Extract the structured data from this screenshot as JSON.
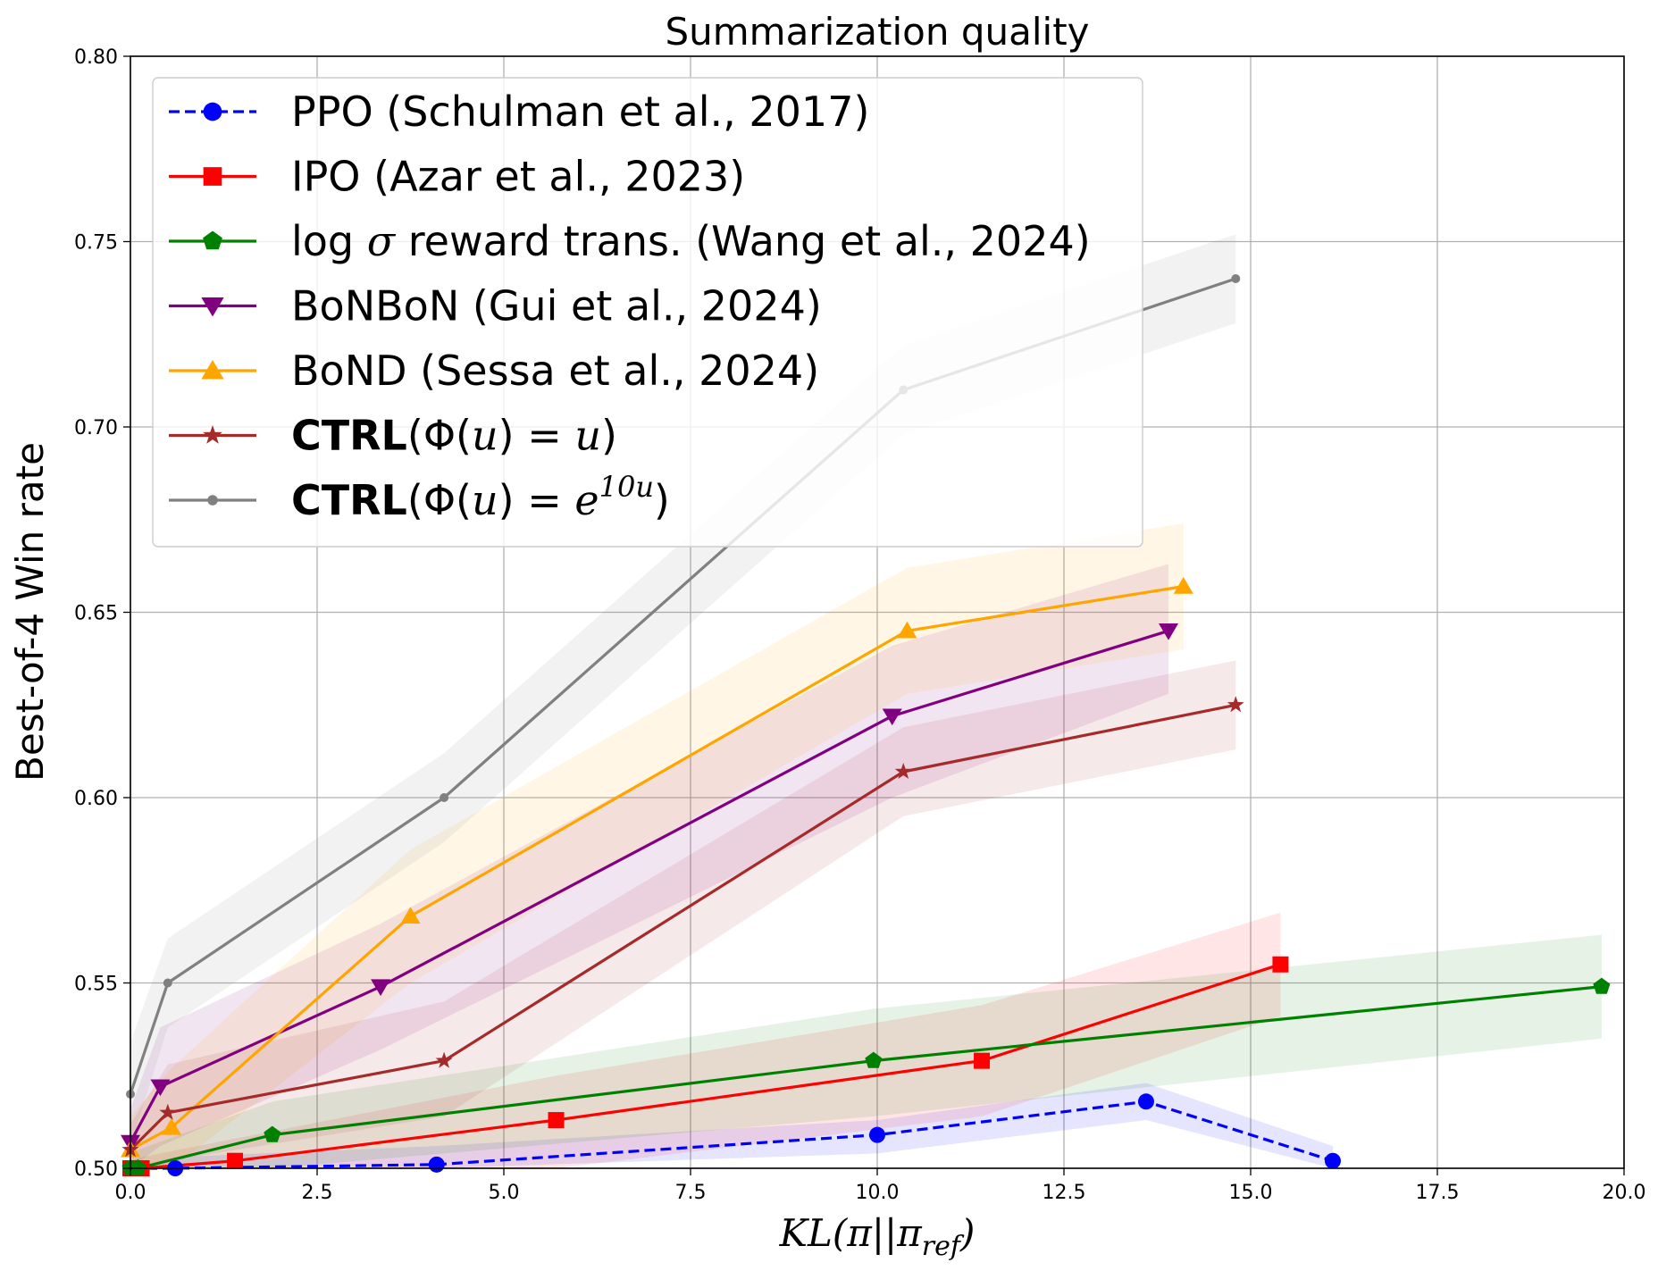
{
  "chart_data": {
    "type": "line",
    "title": "Summarization quality",
    "xlabel": "KL(π||π_ref)",
    "ylabel": "Best-of-4 Win rate",
    "xlim": [
      0,
      20
    ],
    "ylim": [
      0.5,
      0.8
    ],
    "xticks": [
      0,
      2.5,
      5,
      7.5,
      10,
      12.5,
      15,
      17.5,
      20
    ],
    "xtick_labels": [
      "0.0",
      "2.5",
      "5.0",
      "7.5",
      "10.0",
      "12.5",
      "15.0",
      "17.5",
      "20.0"
    ],
    "yticks": [
      0.5,
      0.55,
      0.6,
      0.65,
      0.7,
      0.75,
      0.8
    ],
    "ytick_labels": [
      "0.50",
      "0.55",
      "0.60",
      "0.65",
      "0.70",
      "0.75",
      "0.80"
    ],
    "grid": true,
    "legend_position": "top-left",
    "series": [
      {
        "name": "PPO (Schulman et al., 2017)",
        "legend_parts": [
          {
            "t": "PPO (Schulman et al., 2017)",
            "s": "normal"
          }
        ],
        "color": "#0000ff",
        "marker": "circle",
        "linestyle": "dashed",
        "x": [
          0,
          0.6,
          4.1,
          10.0,
          13.6,
          16.1
        ],
        "y": [
          0.5,
          0.5,
          0.501,
          0.509,
          0.518,
          0.502
        ],
        "band_low": [
          0.5,
          0.5,
          0.5,
          0.504,
          0.513,
          0.5
        ],
        "band_high": [
          0.5,
          0.503,
          0.506,
          0.513,
          0.523,
          0.506
        ]
      },
      {
        "name": "IPO (Azar et al., 2023)",
        "legend_parts": [
          {
            "t": "IPO (Azar et al., 2023)",
            "s": "normal"
          }
        ],
        "color": "#ff0000",
        "marker": "square",
        "linestyle": "solid",
        "x": [
          0,
          0.15,
          1.4,
          5.7,
          11.4,
          15.4
        ],
        "y": [
          0.5,
          0.5,
          0.502,
          0.513,
          0.529,
          0.555
        ],
        "band_low": [
          0.5,
          0.5,
          0.5,
          0.5,
          0.514,
          0.541
        ],
        "band_high": [
          0.502,
          0.503,
          0.508,
          0.525,
          0.544,
          0.569
        ]
      },
      {
        "name": "log σ reward trans. (Wang et al., 2024)",
        "legend_parts": [
          {
            "t": "log ",
            "s": "normal"
          },
          {
            "t": "σ",
            "s": "math"
          },
          {
            "t": " reward trans. (Wang et al., 2024)",
            "s": "normal"
          }
        ],
        "color": "#008000",
        "marker": "pentagon",
        "linestyle": "solid",
        "x": [
          0,
          0.1,
          1.9,
          9.95,
          19.7
        ],
        "y": [
          0.5,
          0.5,
          0.509,
          0.529,
          0.549
        ],
        "band_low": [
          0.5,
          0.5,
          0.5,
          0.514,
          0.535
        ],
        "band_high": [
          0.503,
          0.505,
          0.518,
          0.543,
          0.563
        ]
      },
      {
        "name": "BoNBoN (Gui et al., 2024)",
        "legend_parts": [
          {
            "t": "BoNBoN (Gui et al., 2024)",
            "s": "normal"
          }
        ],
        "color": "#800080",
        "marker": "triangle-down",
        "linestyle": "solid",
        "x": [
          0,
          0.4,
          3.35,
          10.2,
          13.9
        ],
        "y": [
          0.507,
          0.522,
          0.549,
          0.622,
          0.645
        ],
        "band_low": [
          0.5,
          0.506,
          0.532,
          0.6,
          0.628
        ],
        "band_high": [
          0.516,
          0.538,
          0.566,
          0.641,
          0.663
        ]
      },
      {
        "name": "BoND (Sessa et al., 2024)",
        "legend_parts": [
          {
            "t": "BoND (Sessa et al., 2024)",
            "s": "normal"
          }
        ],
        "color": "#ffa500",
        "marker": "triangle-up",
        "linestyle": "solid",
        "x": [
          0,
          0.55,
          3.75,
          10.4,
          14.1
        ],
        "y": [
          0.505,
          0.511,
          0.568,
          0.645,
          0.657
        ],
        "band_low": [
          0.5,
          0.5,
          0.55,
          0.628,
          0.64
        ],
        "band_high": [
          0.514,
          0.527,
          0.586,
          0.662,
          0.674
        ]
      },
      {
        "name": "CTRL(Φ(u) = u)",
        "legend_parts": [
          {
            "t": "CTRL",
            "s": "bold"
          },
          {
            "t": "(Φ(",
            "s": "normal"
          },
          {
            "t": "u",
            "s": "math"
          },
          {
            "t": ") = ",
            "s": "normal"
          },
          {
            "t": "u",
            "s": "math"
          },
          {
            "t": ")",
            "s": "normal"
          }
        ],
        "color": "#a52a2a",
        "marker": "star",
        "linestyle": "solid",
        "x": [
          0,
          0.5,
          4.2,
          10.35,
          14.8
        ],
        "y": [
          0.505,
          0.515,
          0.529,
          0.607,
          0.625
        ],
        "band_low": [
          0.5,
          0.502,
          0.514,
          0.595,
          0.613
        ],
        "band_high": [
          0.512,
          0.528,
          0.545,
          0.619,
          0.637
        ]
      },
      {
        "name": "CTRL(Φ(u) = e^{10u})",
        "legend_parts": [
          {
            "t": "CTRL",
            "s": "bold"
          },
          {
            "t": "(Φ(",
            "s": "normal"
          },
          {
            "t": "u",
            "s": "math"
          },
          {
            "t": ") = ",
            "s": "normal"
          },
          {
            "t": "e",
            "s": "math"
          },
          {
            "t": "10u",
            "s": "sup"
          },
          {
            "t": ")",
            "s": "normal"
          }
        ],
        "color": "#808080",
        "marker": "point",
        "linestyle": "solid",
        "x": [
          0,
          0.5,
          4.2,
          10.35,
          14.8
        ],
        "y": [
          0.52,
          0.55,
          0.6,
          0.71,
          0.74
        ],
        "band_low": [
          0.506,
          0.538,
          0.588,
          0.698,
          0.728
        ],
        "band_high": [
          0.534,
          0.562,
          0.612,
          0.722,
          0.752
        ]
      }
    ]
  }
}
